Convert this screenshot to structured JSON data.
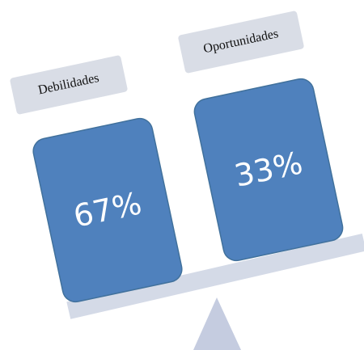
{
  "items": [
    {
      "label": "Debilidades",
      "value": "67%"
    },
    {
      "label": "Oportunidades",
      "value": "33%"
    }
  ]
}
